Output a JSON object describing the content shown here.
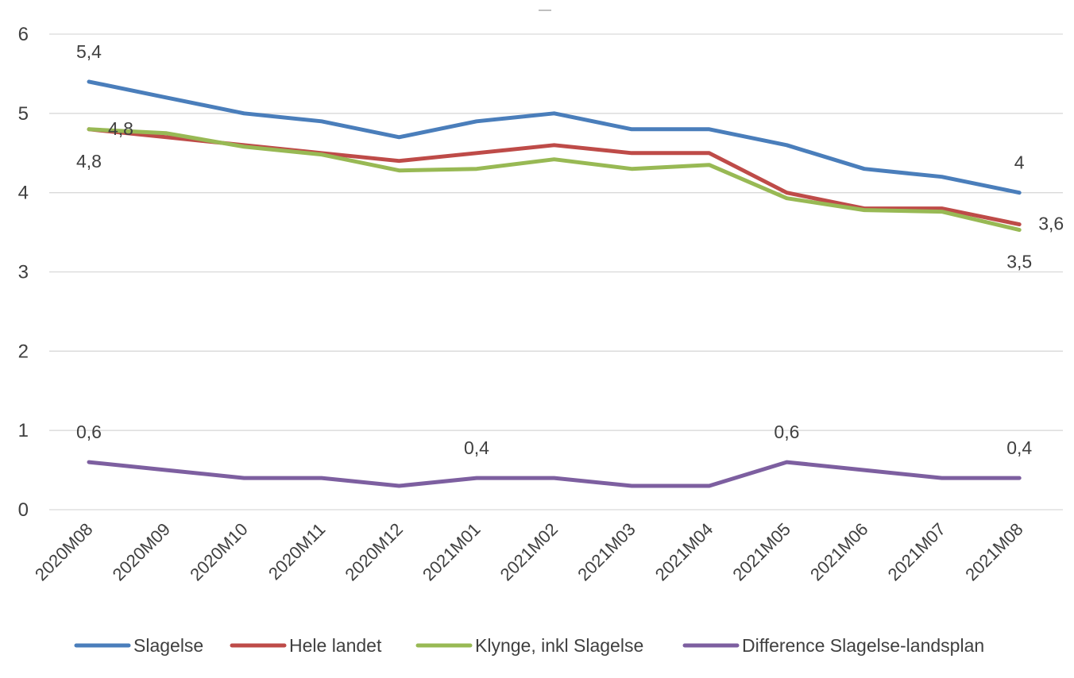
{
  "chart_data": {
    "type": "line",
    "title": "",
    "xlabel": "",
    "ylabel": "",
    "categories": [
      "2020M08",
      "2020M09",
      "2020M10",
      "2020M11",
      "2020M12",
      "2021M01",
      "2021M02",
      "2021M03",
      "2021M04",
      "2021M05",
      "2021M06",
      "2021M07",
      "2021M08"
    ],
    "ylim": [
      0,
      6
    ],
    "yticks": [
      "0",
      "1",
      "2",
      "3",
      "4",
      "5",
      "6"
    ],
    "grid": true,
    "legend_position": "bottom",
    "series": [
      {
        "name": "Slagelse",
        "color": "#4a7ebb",
        "values": [
          5.4,
          5.2,
          5.0,
          4.9,
          4.7,
          4.9,
          5.0,
          4.8,
          4.8,
          4.6,
          4.3,
          4.2,
          4.0
        ]
      },
      {
        "name": "Hele landet",
        "color": "#be4b48",
        "values": [
          4.8,
          4.7,
          4.6,
          4.5,
          4.4,
          4.5,
          4.6,
          4.5,
          4.5,
          4.0,
          3.8,
          3.8,
          3.6
        ]
      },
      {
        "name": "Klynge, inkl Slagelse",
        "color": "#98b954",
        "values": [
          4.8,
          4.75,
          4.58,
          4.48,
          4.28,
          4.3,
          4.42,
          4.3,
          4.35,
          3.93,
          3.78,
          3.76,
          3.53
        ]
      },
      {
        "name": "Difference Slagelse-landsplan",
        "color": "#7d5fa0",
        "values": [
          0.6,
          0.5,
          0.4,
          0.4,
          0.3,
          0.4,
          0.4,
          0.3,
          0.3,
          0.6,
          0.5,
          0.4,
          0.4
        ]
      }
    ],
    "data_labels": [
      {
        "series": 0,
        "index": 0,
        "text": "5,4",
        "pos": "above"
      },
      {
        "series": 0,
        "index": 12,
        "text": "4",
        "pos": "above"
      },
      {
        "series": 1,
        "index": 0,
        "text": "4,8",
        "pos": "right"
      },
      {
        "series": 1,
        "index": 12,
        "text": "3,6",
        "pos": "right"
      },
      {
        "series": 2,
        "index": 0,
        "text": "4,8",
        "pos": "below"
      },
      {
        "series": 2,
        "index": 12,
        "text": "3,5",
        "pos": "below"
      },
      {
        "series": 3,
        "index": 0,
        "text": "0,6",
        "pos": "above"
      },
      {
        "series": 3,
        "index": 5,
        "text": "0,4",
        "pos": "above"
      },
      {
        "series": 3,
        "index": 9,
        "text": "0,6",
        "pos": "above"
      },
      {
        "series": 3,
        "index": 12,
        "text": "0,4",
        "pos": "above"
      }
    ]
  }
}
